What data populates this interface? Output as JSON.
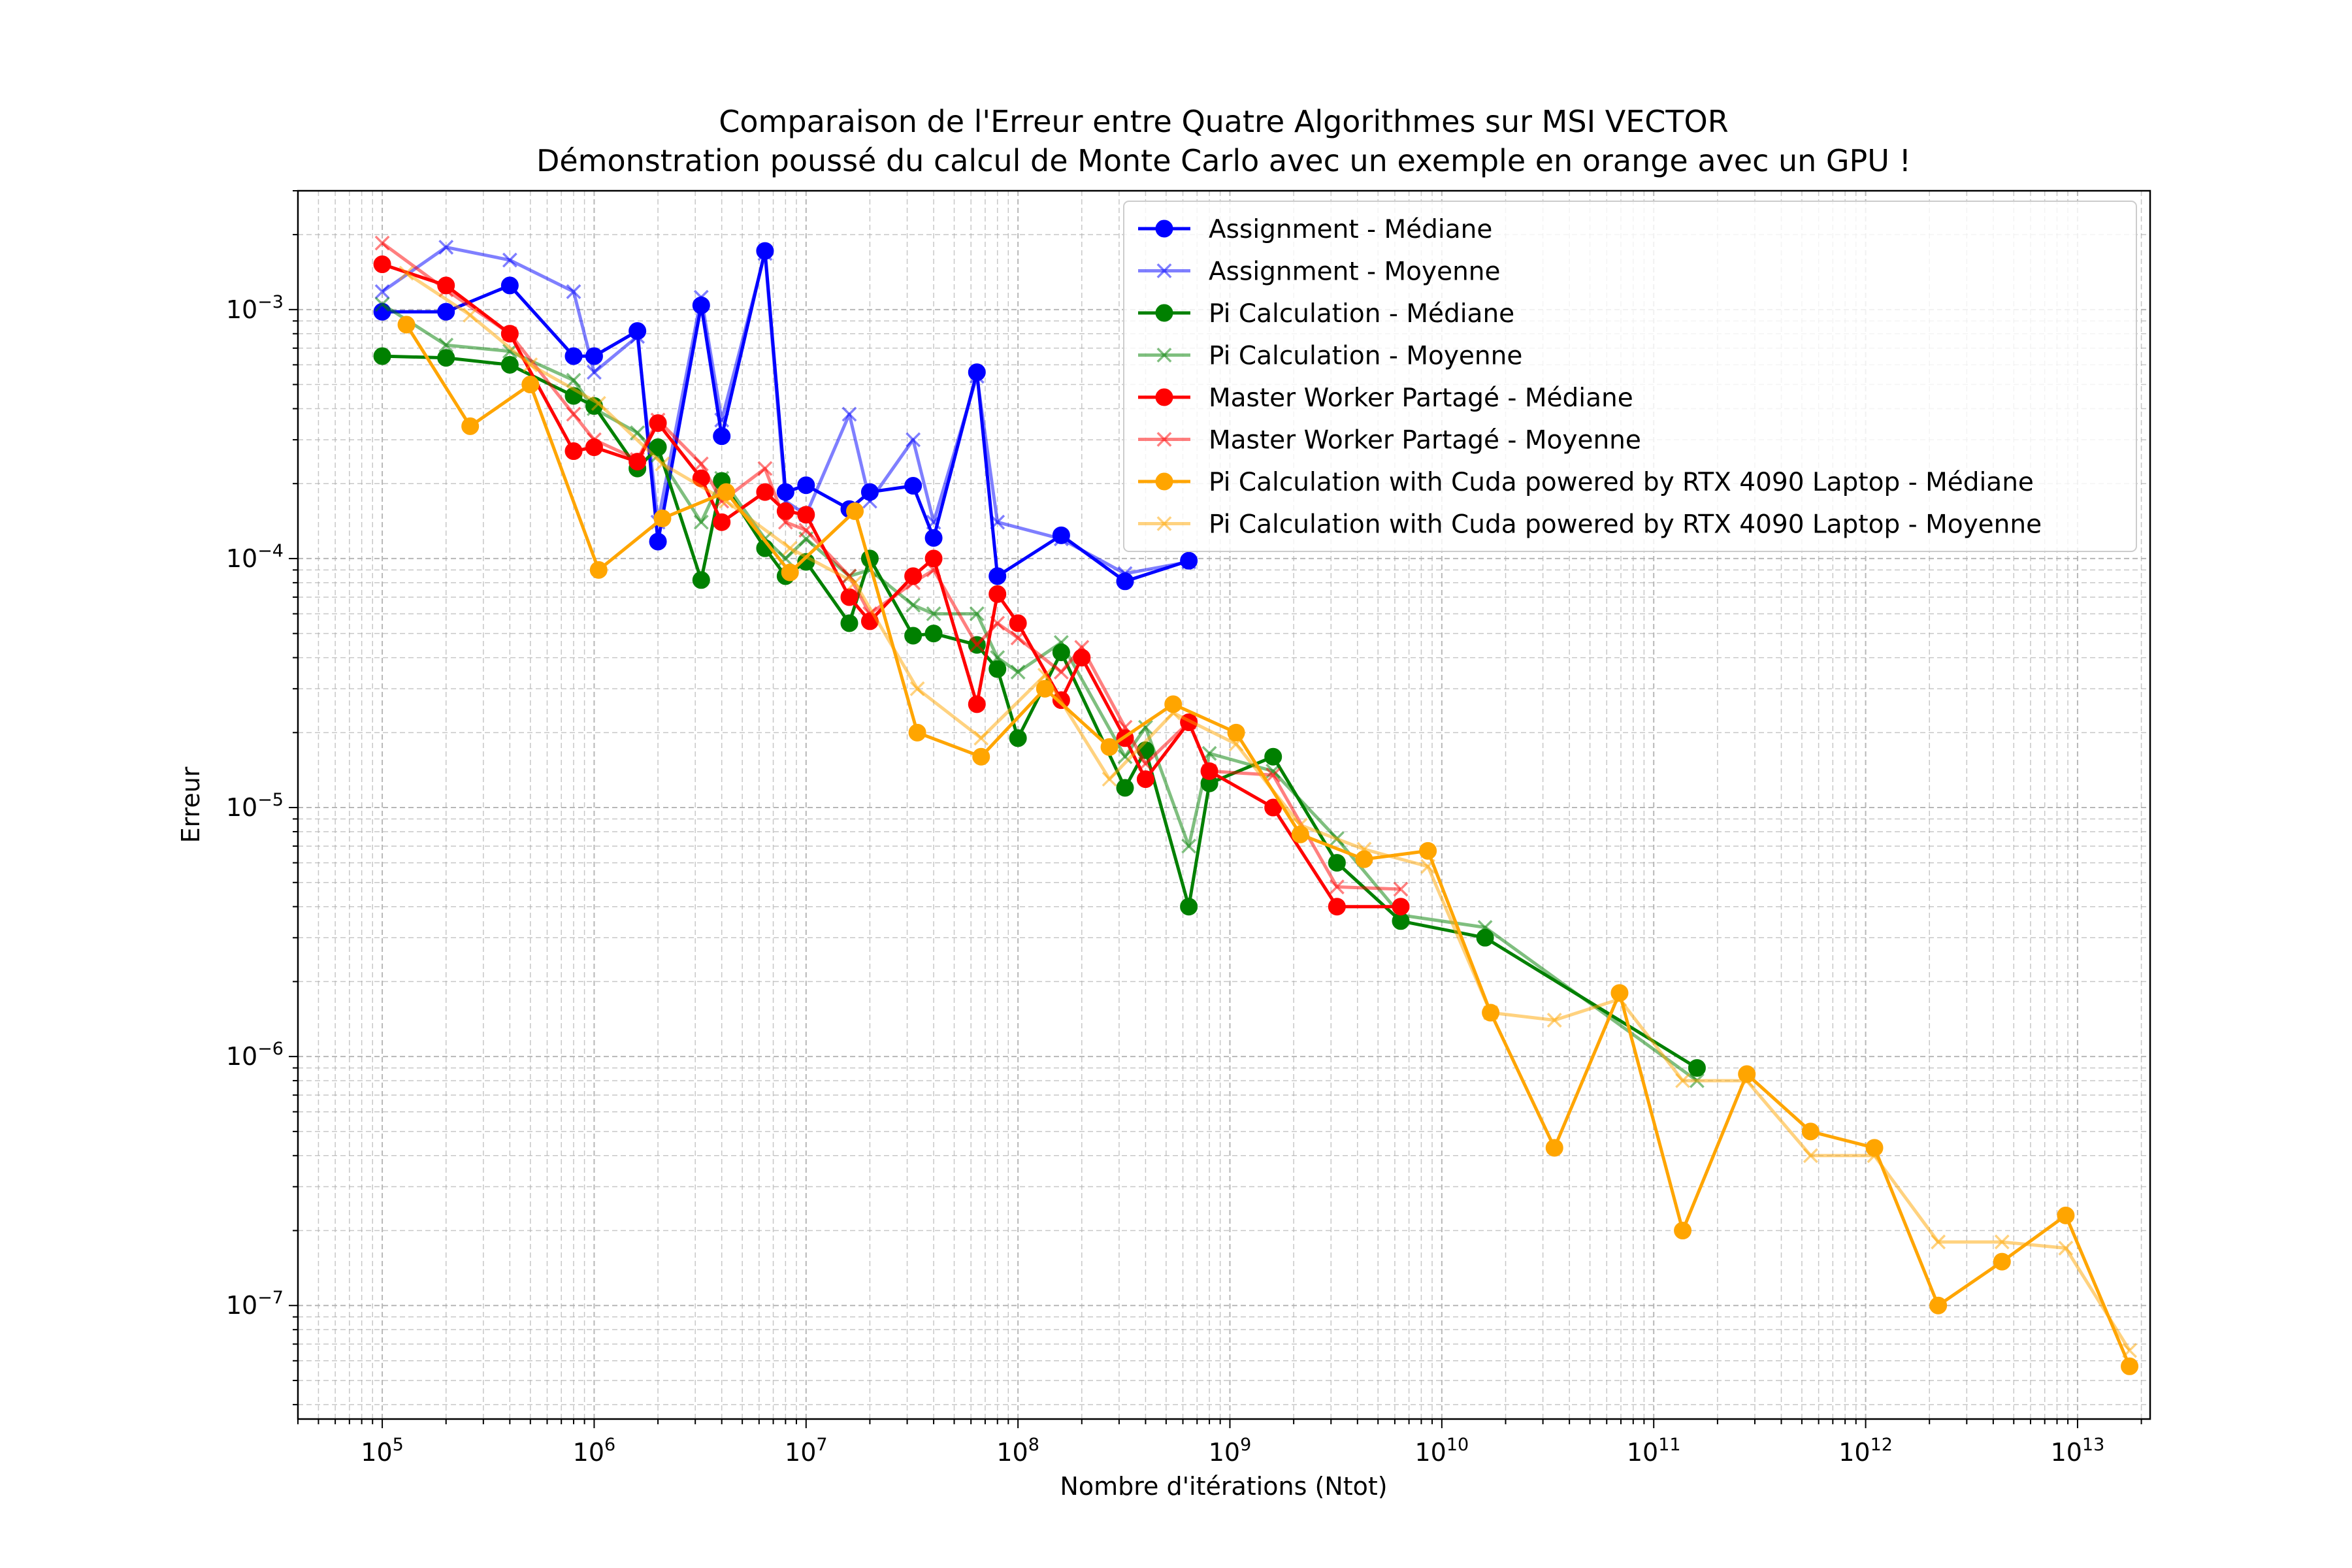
{
  "chart_data": {
    "type": "line",
    "title": "Comparaison de l'Erreur entre Quatre Algorithmes sur MSI VECTOR",
    "subtitle": "Démonstration poussé du calcul de Monte Carlo avec un exemple en orange avec un GPU !",
    "xlabel": "Nombre d'itérations (Ntot)",
    "ylabel": "Erreur",
    "xscale": "log",
    "yscale": "log",
    "xlim": [
      40000.0,
      22000000000000.0
    ],
    "ylim": [
      3.5e-08,
      0.003
    ],
    "grid": true,
    "legend_position": "top-right",
    "x_ticks": [
      {
        "base": "10",
        "exp": "5",
        "value": 100000.0
      },
      {
        "base": "10",
        "exp": "6",
        "value": 1000000.0
      },
      {
        "base": "10",
        "exp": "7",
        "value": 10000000.0
      },
      {
        "base": "10",
        "exp": "8",
        "value": 100000000.0
      },
      {
        "base": "10",
        "exp": "9",
        "value": 1000000000.0
      },
      {
        "base": "10",
        "exp": "10",
        "value": 10000000000.0
      },
      {
        "base": "10",
        "exp": "11",
        "value": 100000000000.0
      },
      {
        "base": "10",
        "exp": "12",
        "value": 1000000000000.0
      },
      {
        "base": "10",
        "exp": "13",
        "value": 10000000000000.0
      }
    ],
    "y_ticks": [
      {
        "base": "10",
        "exp": "−7",
        "value": 1e-07
      },
      {
        "base": "10",
        "exp": "−6",
        "value": 1e-06
      },
      {
        "base": "10",
        "exp": "−5",
        "value": 1e-05
      },
      {
        "base": "10",
        "exp": "−4",
        "value": 0.0001
      },
      {
        "base": "10",
        "exp": "−3",
        "value": 0.001
      }
    ],
    "series": [
      {
        "name": "Assignment - Médiane",
        "color": "#0000ff",
        "marker": "circle",
        "alpha": 1,
        "x": [
          100000.0,
          200000.0,
          400000.0,
          800000.0,
          1000000.0,
          1600000.0,
          2000000.0,
          3200000.0,
          4000000.0,
          6400000.0,
          8000000.0,
          10000000.0,
          16000000.0,
          20000000.0,
          32000000.0,
          40000000.0,
          64000000.0,
          80000000.0,
          160000000.0,
          320000000.0,
          640000000.0
        ],
        "y": [
          0.00098,
          0.00098,
          0.00125,
          0.00065,
          0.00065,
          0.00082,
          0.000117,
          0.00104,
          0.00031,
          0.00172,
          0.000185,
          0.000197,
          0.000158,
          0.000185,
          0.000196,
          0.000121,
          0.00056,
          8.5e-05,
          0.000124,
          8.1e-05,
          9.8e-05
        ]
      },
      {
        "name": "Assignment - Moyenne",
        "color": "#0000ff",
        "marker": "x",
        "alpha": 0.5,
        "x": [
          100000.0,
          200000.0,
          400000.0,
          800000.0,
          1000000.0,
          1600000.0,
          2000000.0,
          3200000.0,
          4000000.0,
          6400000.0,
          8000000.0,
          10000000.0,
          16000000.0,
          20000000.0,
          32000000.0,
          40000000.0,
          64000000.0,
          80000000.0,
          160000000.0,
          320000000.0,
          640000000.0
        ],
        "y": [
          0.00118,
          0.00178,
          0.00158,
          0.00118,
          0.00056,
          0.00078,
          0.00014,
          0.00112,
          0.00036,
          0.00168,
          0.00017,
          0.00015,
          0.00038,
          0.00017,
          0.0003,
          0.00014,
          0.00054,
          0.00014,
          0.00012,
          8.7e-05,
          9.7e-05
        ]
      },
      {
        "name": "Pi Calculation - Médiane",
        "color": "#008000",
        "marker": "circle",
        "alpha": 1,
        "x": [
          100000.0,
          200000.0,
          400000.0,
          800000.0,
          1000000.0,
          1600000.0,
          2000000.0,
          3200000.0,
          4000000.0,
          6400000.0,
          8000000.0,
          10000000.0,
          16000000.0,
          20000000.0,
          32000000.0,
          40000000.0,
          64000000.0,
          80000000.0,
          100000000.0,
          160000000.0,
          320000000.0,
          400000000.0,
          640000000.0,
          800000000.0,
          1600000000.0,
          3200000000.0,
          6400000000.0,
          16000000000.0,
          160000000000.0
        ],
        "y": [
          0.00065,
          0.00064,
          0.0006,
          0.00045,
          0.00041,
          0.00023,
          0.00028,
          8.2e-05,
          0.000205,
          0.00011,
          8.5e-05,
          9.7e-05,
          5.5e-05,
          0.0001,
          4.9e-05,
          5e-05,
          4.5e-05,
          3.6e-05,
          1.9e-05,
          4.2e-05,
          1.2e-05,
          1.7e-05,
          4e-06,
          1.25e-05,
          1.6e-05,
          6e-06,
          3.5e-06,
          3e-06,
          9e-07
        ]
      },
      {
        "name": "Pi Calculation - Moyenne",
        "color": "#008000",
        "marker": "x",
        "alpha": 0.5,
        "x": [
          100000.0,
          200000.0,
          400000.0,
          800000.0,
          1000000.0,
          1600000.0,
          2000000.0,
          3200000.0,
          4000000.0,
          6400000.0,
          8000000.0,
          10000000.0,
          16000000.0,
          20000000.0,
          32000000.0,
          40000000.0,
          64000000.0,
          80000000.0,
          100000000.0,
          160000000.0,
          320000000.0,
          400000000.0,
          640000000.0,
          800000000.0,
          1600000000.0,
          3200000000.0,
          6400000000.0,
          16000000000.0,
          160000000000.0
        ],
        "y": [
          0.00105,
          0.00072,
          0.00068,
          0.00052,
          0.0004,
          0.00032,
          0.00026,
          0.00014,
          0.00021,
          0.00012,
          0.0001,
          0.00012,
          8.5e-05,
          9e-05,
          6.5e-05,
          6e-05,
          6e-05,
          4e-05,
          3.5e-05,
          4.6e-05,
          1.6e-05,
          2.1e-05,
          7e-06,
          1.65e-05,
          1.4e-05,
          7.5e-06,
          3.7e-06,
          3.3e-06,
          8e-07
        ]
      },
      {
        "name": "Master Worker Partagé - Médiane",
        "color": "#ff0000",
        "marker": "circle",
        "alpha": 1,
        "x": [
          100000.0,
          200000.0,
          400000.0,
          800000.0,
          1000000.0,
          1600000.0,
          2000000.0,
          3200000.0,
          4000000.0,
          6400000.0,
          8000000.0,
          10000000.0,
          16000000.0,
          20000000.0,
          32000000.0,
          40000000.0,
          64000000.0,
          80000000.0,
          100000000.0,
          160000000.0,
          200000000.0,
          320000000.0,
          400000000.0,
          640000000.0,
          800000000.0,
          1600000000.0,
          3200000000.0,
          6400000000.0
        ],
        "y": [
          0.00152,
          0.00125,
          0.0008,
          0.00027,
          0.00028,
          0.000245,
          0.00035,
          0.00021,
          0.00014,
          0.000185,
          0.000155,
          0.00015,
          7e-05,
          5.6e-05,
          8.5e-05,
          0.0001,
          2.6e-05,
          7.2e-05,
          5.5e-05,
          2.7e-05,
          4e-05,
          1.9e-05,
          1.3e-05,
          2.2e-05,
          1.4e-05,
          1e-05,
          4e-06,
          4e-06
        ]
      },
      {
        "name": "Master Worker Partagé - Moyenne",
        "color": "#ff0000",
        "marker": "x",
        "alpha": 0.5,
        "x": [
          100000.0,
          200000.0,
          400000.0,
          800000.0,
          1000000.0,
          1600000.0,
          2000000.0,
          3200000.0,
          4000000.0,
          6400000.0,
          8000000.0,
          10000000.0,
          16000000.0,
          20000000.0,
          32000000.0,
          40000000.0,
          64000000.0,
          80000000.0,
          100000000.0,
          160000000.0,
          200000000.0,
          320000000.0,
          400000000.0,
          640000000.0,
          800000000.0,
          1600000000.0,
          3200000000.0,
          6400000000.0
        ],
        "y": [
          0.00185,
          0.0012,
          0.0008,
          0.00038,
          0.0003,
          0.00025,
          0.00036,
          0.00024,
          0.00017,
          0.00023,
          0.00014,
          0.00013,
          8.5e-05,
          6e-05,
          8e-05,
          9e-05,
          4.5e-05,
          5.5e-05,
          4.8e-05,
          3.5e-05,
          4.4e-05,
          2.1e-05,
          1.5e-05,
          2.2e-05,
          1.4e-05,
          1.35e-05,
          4.8e-06,
          4.7e-06
        ]
      },
      {
        "name": "Pi Calculation with Cuda powered by RTX 4090 Laptop - Médiane",
        "color": "#ffa500",
        "marker": "circle",
        "alpha": 1,
        "x": [
          130000.0,
          260000.0,
          500000.0,
          1050000.0,
          2100000.0,
          4200000.0,
          8400000.0,
          17000000.0,
          33500000.0,
          67000000.0,
          134000000.0,
          270000000.0,
          540000000.0,
          1070000000.0,
          2150000000.0,
          4300000000.0,
          8600000000.0,
          17000000000.0,
          34000000000.0,
          69000000000.0,
          137000000000.0,
          275000000000.0,
          550000000000.0,
          1100000000000.0,
          2200000000000.0,
          4400000000000.0,
          8800000000000.0,
          17600000000000.0
        ],
        "y": [
          0.00087,
          0.00034,
          0.0005,
          9e-05,
          0.000145,
          0.000185,
          8.8e-05,
          0.000155,
          2e-05,
          1.6e-05,
          3e-05,
          1.75e-05,
          2.6e-05,
          2e-05,
          7.8e-06,
          6.2e-06,
          6.7e-06,
          1.5e-06,
          4.3e-07,
          1.8e-06,
          2e-07,
          8.5e-07,
          5e-07,
          4.3e-07,
          1e-07,
          1.5e-07,
          2.3e-07,
          5.7e-08
        ]
      },
      {
        "name": "Pi Calculation with Cuda powered by RTX 4090 Laptop - Moyenne",
        "color": "#ffa500",
        "marker": "x",
        "alpha": 0.5,
        "x": [
          130000.0,
          260000.0,
          500000.0,
          1050000.0,
          2100000.0,
          4200000.0,
          8400000.0,
          17000000.0,
          33500000.0,
          67000000.0,
          134000000.0,
          270000000.0,
          540000000.0,
          1070000000.0,
          2150000000.0,
          4300000000.0,
          8600000000.0,
          17000000000.0,
          34000000000.0,
          69000000000.0,
          137000000000.0,
          275000000000.0,
          550000000000.0,
          1100000000000.0,
          2200000000000.0,
          4400000000000.0,
          8800000000000.0,
          17600000000000.0
        ],
        "y": [
          0.0014,
          0.00095,
          0.0006,
          0.00042,
          0.00024,
          0.00017,
          0.00011,
          8e-05,
          3e-05,
          1.9e-05,
          3.4e-05,
          1.3e-05,
          2.4e-05,
          1.8e-05,
          8.5e-06,
          6.8e-06,
          5.8e-06,
          1.5e-06,
          1.4e-06,
          1.7e-06,
          8e-07,
          8e-07,
          4e-07,
          4e-07,
          1.8e-07,
          1.8e-07,
          1.7e-07,
          6.6e-08
        ]
      }
    ]
  }
}
